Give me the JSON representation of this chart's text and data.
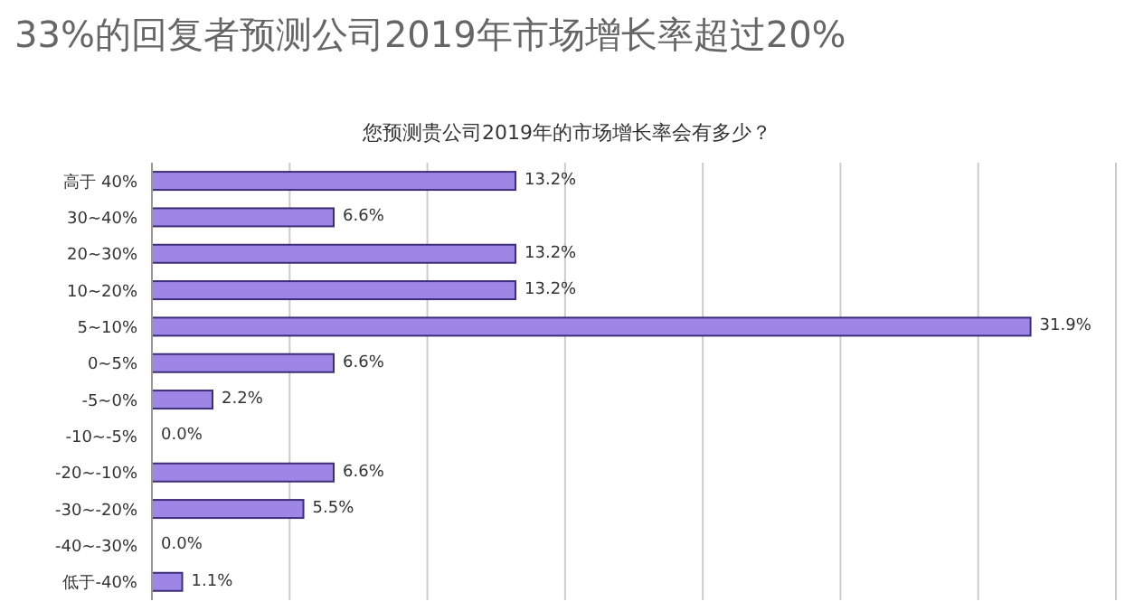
{
  "chart_data": {
    "type": "bar",
    "orientation": "horizontal",
    "title": "33%的回复者预测公司2019年市场增长率超过20%",
    "subtitle": "您预测贵公司2019年的市场增长率会有多少？",
    "categories": [
      "高于 40%",
      "30~40%",
      "20~30%",
      "10~20%",
      "5~10%",
      "0~5%",
      "-5~0%",
      "-10~-5%",
      "-20~-10%",
      "-30~-20%",
      "-40~-30%",
      "低于-40%"
    ],
    "values": [
      13.2,
      6.6,
      13.2,
      13.2,
      31.9,
      6.6,
      2.2,
      0.0,
      6.6,
      5.5,
      0.0,
      1.1
    ],
    "value_labels": [
      "13.2%",
      "6.6%",
      "13.2%",
      "13.2%",
      "31.9%",
      "6.6%",
      "2.2%",
      "0.0%",
      "6.6%",
      "5.5%",
      "0.0%",
      "1.1%"
    ],
    "color": "#9e86e6",
    "grid": "x",
    "tick_labels": "y",
    "legend": false
  }
}
